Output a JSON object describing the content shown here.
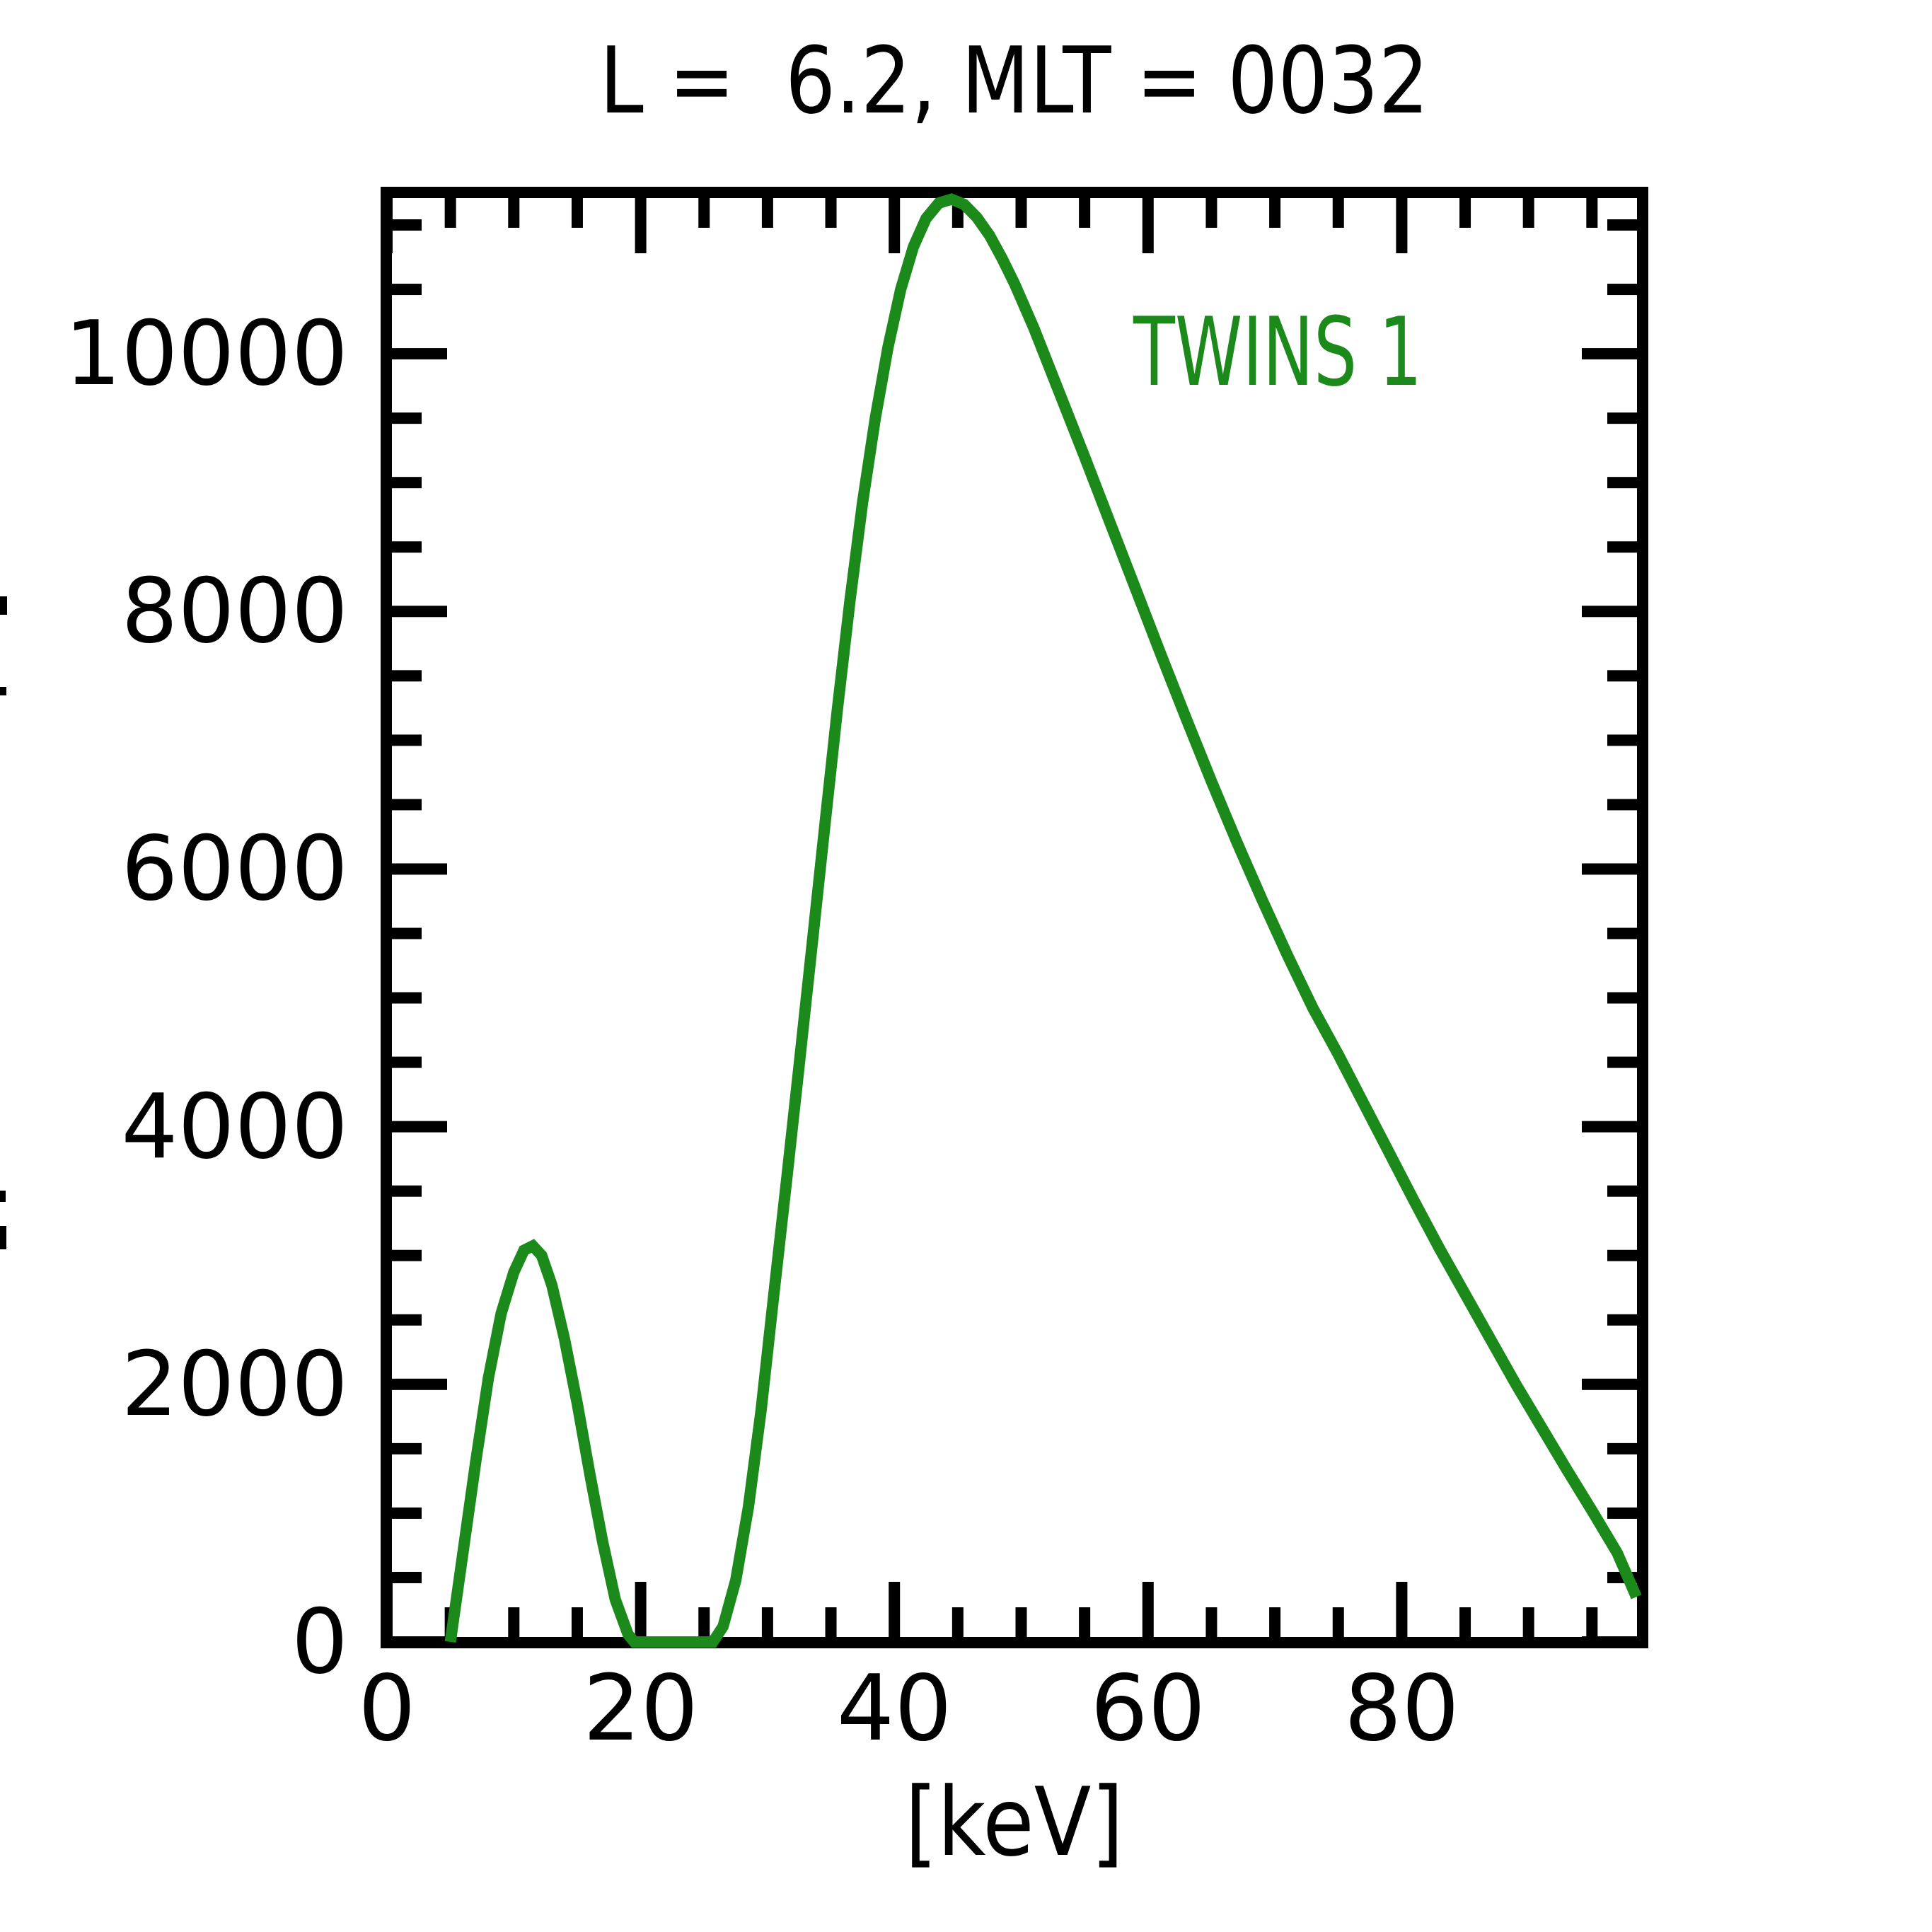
{
  "title": "L =  6.2, MLT = 0032",
  "legend": {
    "label": "TWINS 1",
    "color": "#1b8a1b"
  },
  "axes": {
    "xlabel": "[keV]",
    "x_tick_labels": [
      "0",
      "20",
      "40",
      "60",
      "80"
    ],
    "x_major_ticks": [
      0,
      20,
      40,
      60,
      80
    ],
    "x_minor_step": 5,
    "y_tick_labels": [
      "0",
      "2000",
      "4000",
      "6000",
      "8000",
      "10000"
    ],
    "y_major_ticks": [
      0,
      2000,
      4000,
      6000,
      8000,
      10000
    ],
    "y_minor_step": 500
  },
  "chart_data": {
    "type": "line",
    "title": "L =  6.2, MLT = 0032",
    "xlabel": "[keV]",
    "ylabel": "",
    "xlim": [
      0,
      99
    ],
    "ylim": [
      0,
      11250
    ],
    "grid": false,
    "legend_position": "upper right",
    "series": [
      {
        "name": "TWINS 1",
        "color": "#1b8a1b",
        "x": [
          5,
          6,
          7,
          8,
          9,
          10,
          10.8,
          11.5,
          12.2,
          13,
          14,
          15,
          16,
          17,
          18,
          19,
          19.5,
          20.5,
          22,
          24,
          25.7,
          26.5,
          27.5,
          28.5,
          29.5,
          30.5,
          31.5,
          32.5,
          33.5,
          34.5,
          35.5,
          36.5,
          37.5,
          38.5,
          39.5,
          40.5,
          41.5,
          42.5,
          43.5,
          44.5,
          45.5,
          46.5,
          47.5,
          48.5,
          49.5,
          51,
          53,
          55,
          57,
          59,
          61,
          63,
          65,
          67,
          69,
          71,
          73,
          75,
          77,
          79,
          81,
          83,
          85,
          87,
          89,
          91,
          93,
          95,
          97,
          98.5
        ],
        "y": [
          0,
          700,
          1400,
          2050,
          2550,
          2870,
          3040,
          3075,
          3000,
          2770,
          2350,
          1850,
          1300,
          780,
          330,
          60,
          0,
          0,
          0,
          0,
          0,
          120,
          480,
          1050,
          1800,
          2700,
          3580,
          4480,
          5400,
          6320,
          7230,
          8080,
          8850,
          9500,
          10050,
          10500,
          10830,
          11050,
          11170,
          11200,
          11160,
          11060,
          10920,
          10740,
          10540,
          10200,
          9700,
          9200,
          8690,
          8180,
          7670,
          7170,
          6680,
          6210,
          5760,
          5330,
          4920,
          4560,
          4180,
          3800,
          3420,
          3050,
          2700,
          2350,
          2000,
          1670,
          1340,
          1020,
          690,
          350
        ]
      }
    ]
  }
}
